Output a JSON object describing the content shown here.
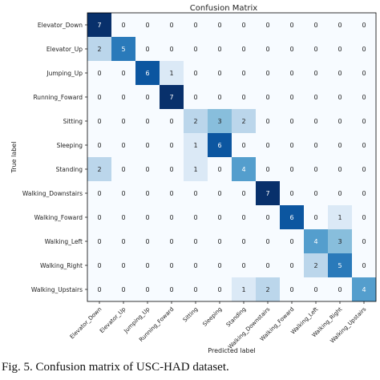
{
  "caption": "Fig. 5. Confusion matrix of USC-HAD dataset.",
  "chart_data": {
    "type": "heatmap",
    "title": "Confusion Matrix",
    "xlabel": "Predicted label",
    "ylabel": "True label",
    "colormap": "Blues",
    "color_low": "#f7fbff",
    "color_high": "#08306b",
    "vmin": 0,
    "vmax": 7,
    "row_labels": [
      "Elevator_Down",
      "Elevator_Up",
      "Jumping_Up",
      "Running_Foward",
      "Sitting",
      "Sleeping",
      "Standing",
      "Walking_Downstairs",
      "Walking_Foward",
      "Walking_Left",
      "Walking_Right",
      "Walking_Upstairs"
    ],
    "col_labels": [
      "Elevator_Down",
      "Elevator_Up",
      "Jumping_Up",
      "Running_Foward",
      "Sitting",
      "Sleeping",
      "Standing",
      "Walking_Downstairs",
      "Walking_Foward",
      "Walking_Left",
      "Walking_Right",
      "Walking_Upstairs"
    ],
    "matrix": [
      [
        7,
        0,
        0,
        0,
        0,
        0,
        0,
        0,
        0,
        0,
        0,
        0
      ],
      [
        2,
        5,
        0,
        0,
        0,
        0,
        0,
        0,
        0,
        0,
        0,
        0
      ],
      [
        0,
        0,
        6,
        1,
        0,
        0,
        0,
        0,
        0,
        0,
        0,
        0
      ],
      [
        0,
        0,
        0,
        7,
        0,
        0,
        0,
        0,
        0,
        0,
        0,
        0
      ],
      [
        0,
        0,
        0,
        0,
        2,
        3,
        2,
        0,
        0,
        0,
        0,
        0
      ],
      [
        0,
        0,
        0,
        0,
        1,
        6,
        0,
        0,
        0,
        0,
        0,
        0
      ],
      [
        2,
        0,
        0,
        0,
        1,
        0,
        4,
        0,
        0,
        0,
        0,
        0
      ],
      [
        0,
        0,
        0,
        0,
        0,
        0,
        0,
        7,
        0,
        0,
        0,
        0
      ],
      [
        0,
        0,
        0,
        0,
        0,
        0,
        0,
        0,
        6,
        0,
        1,
        0
      ],
      [
        0,
        0,
        0,
        0,
        0,
        0,
        0,
        0,
        0,
        4,
        3,
        0
      ],
      [
        0,
        0,
        0,
        0,
        0,
        0,
        0,
        0,
        0,
        2,
        5,
        0
      ],
      [
        0,
        0,
        0,
        0,
        0,
        0,
        1,
        2,
        0,
        0,
        0,
        4
      ]
    ]
  }
}
